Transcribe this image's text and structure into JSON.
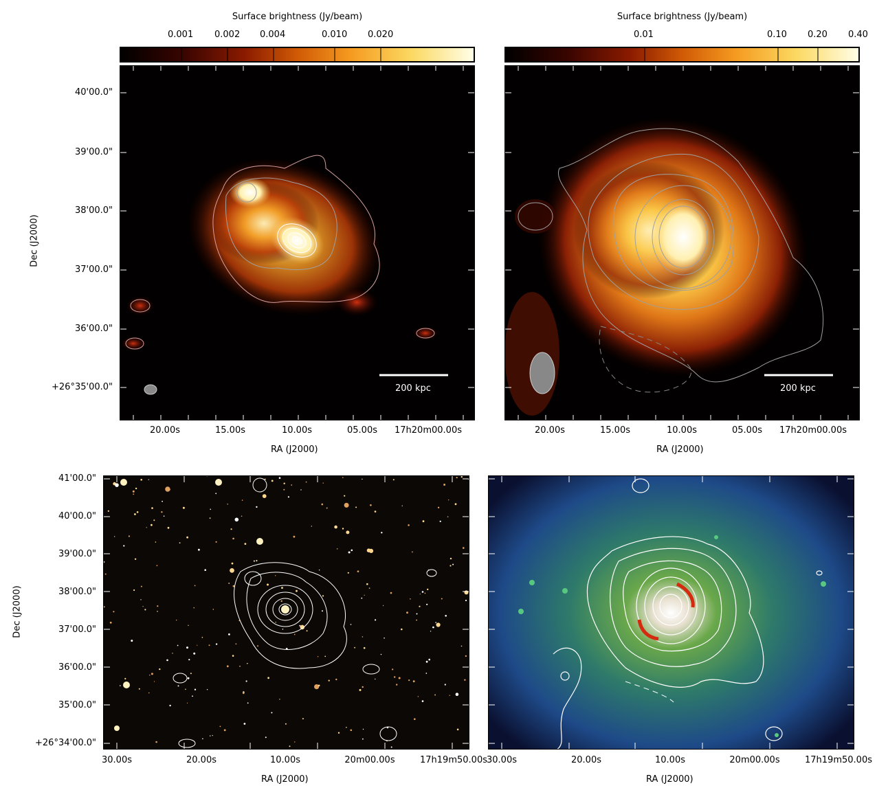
{
  "colors": {
    "cmap": [
      "#000000",
      "#3a0500",
      "#8a1a00",
      "#d05a05",
      "#f59a20",
      "#fbd860",
      "#ffffe8"
    ],
    "optical_bg": "#0b0806",
    "xray_cmap": [
      "#0a1030",
      "#1a3a78",
      "#2a6a7a",
      "#4a9a50",
      "#c8d89a",
      "#ffffff"
    ],
    "contour_gray": "#9a9a9a",
    "contour_pink": "#d8a0a0",
    "contour_white": "#ffffff",
    "arc_red": "#d42a10"
  },
  "panels": [
    {
      "colorbar_title": "Surface brightness (Jy/beam)",
      "colorbar_ticks": [
        "0.001",
        "0.002",
        "0.004",
        "0.010",
        "0.020"
      ],
      "dec_labels": [
        "40'00.0\"",
        "39'00.0\"",
        "38'00.0\"",
        "37'00.0\"",
        "36'00.0\"",
        "+26°35'00.0\""
      ],
      "ra_labels": [
        "20.00s",
        "15.00s",
        "10.00s",
        "05.00s",
        "17h20m00.00s"
      ],
      "ra_title": "RA (J2000)",
      "dec_title": "Dec (J2000)",
      "scalebar": "200 kpc"
    },
    {
      "colorbar_title": "Surface brightness (Jy/beam)",
      "colorbar_ticks": [
        "0.01",
        "0.10",
        "0.20",
        "0.40"
      ],
      "ra_labels": [
        "20.00s",
        "15.00s",
        "10.00s",
        "05.00s",
        "17h20m00.00s"
      ],
      "ra_title": "RA (J2000)",
      "scalebar": "200 kpc"
    },
    {
      "dec_labels": [
        "41'00.0\"",
        "40'00.0\"",
        "39'00.0\"",
        "38'00.0\"",
        "37'00.0\"",
        "36'00.0\"",
        "35'00.0\"",
        "+26°34'00.0\""
      ],
      "ra_labels": [
        "30.00s",
        "20.00s",
        "10.00s",
        "20m00.00s",
        "17h19m50.00s"
      ],
      "ra_title": "RA (J2000)",
      "dec_title": "Dec (J2000)"
    },
    {
      "ra_labels": [
        "30.00s",
        "20.00s",
        "10.00s",
        "20m00.00s",
        "17h19m50.00s"
      ],
      "ra_title": "RA (J2000)"
    }
  ]
}
